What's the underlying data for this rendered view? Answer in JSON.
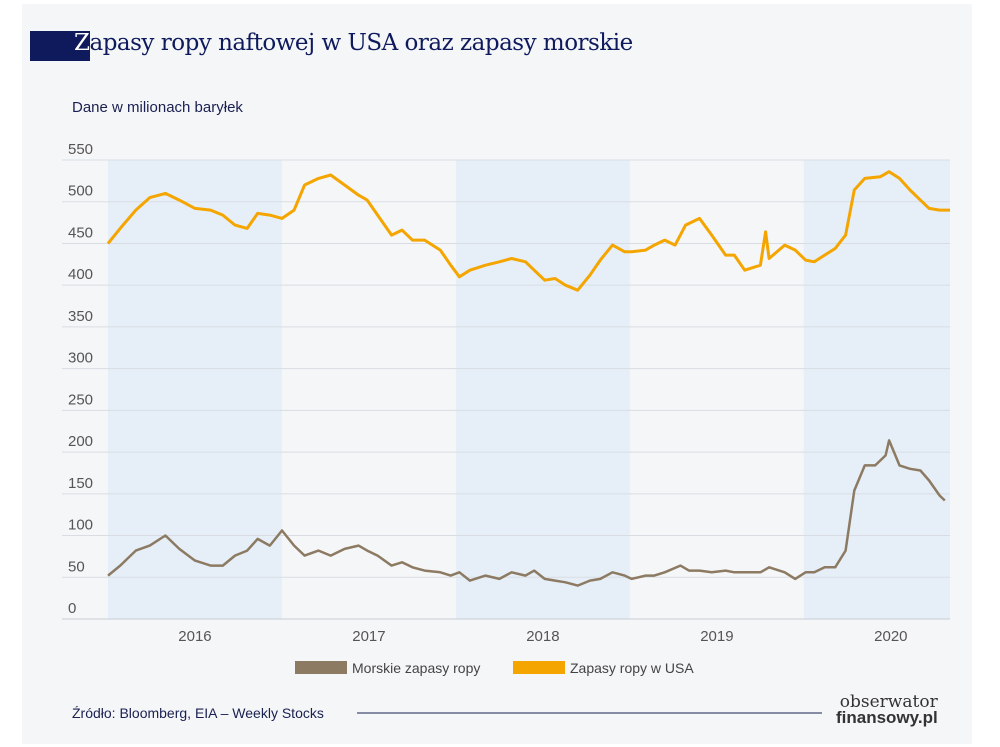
{
  "title": "Zapasy ropy naftowej w USA oraz zapasy morskie",
  "title_first": "Z",
  "title_rest": "apasy ropy naftowej w USA oraz zapasy morskie",
  "source": "Źródło: Bloomberg, EIA – Weekly Stocks",
  "logo": {
    "line1": "obserwator",
    "line2": "finansowy.pl"
  },
  "chart_data": {
    "type": "line",
    "title": "Zapasy ropy naftowej w USA oraz zapasy morskie",
    "subtitle": "Dane w milionach baryłek",
    "ylim": [
      0,
      550
    ],
    "yticks": [
      0,
      50,
      100,
      150,
      200,
      250,
      300,
      350,
      400,
      450,
      500,
      550
    ],
    "xlim": [
      2016.0,
      2020.84
    ],
    "xticks": [
      "2016",
      "2017",
      "2018",
      "2019",
      "2020"
    ],
    "shaded_years": [
      "2016",
      "2018",
      "2020"
    ],
    "grid": true,
    "legend_position": "bottom",
    "series": [
      {
        "name": "Morskie zapasy ropy",
        "color": "#8c7a62",
        "points": [
          [
            2016.0,
            52
          ],
          [
            2016.07,
            64
          ],
          [
            2016.16,
            82
          ],
          [
            2016.24,
            88
          ],
          [
            2016.33,
            100
          ],
          [
            2016.41,
            84
          ],
          [
            2016.5,
            70
          ],
          [
            2016.59,
            64
          ],
          [
            2016.66,
            64
          ],
          [
            2016.73,
            76
          ],
          [
            2016.8,
            82
          ],
          [
            2016.86,
            96
          ],
          [
            2016.93,
            88
          ],
          [
            2017.0,
            106
          ],
          [
            2017.07,
            88
          ],
          [
            2017.13,
            76
          ],
          [
            2017.21,
            82
          ],
          [
            2017.28,
            76
          ],
          [
            2017.36,
            84
          ],
          [
            2017.44,
            88
          ],
          [
            2017.49,
            82
          ],
          [
            2017.55,
            76
          ],
          [
            2017.63,
            64
          ],
          [
            2017.69,
            68
          ],
          [
            2017.75,
            62
          ],
          [
            2017.82,
            58
          ],
          [
            2017.91,
            56
          ],
          [
            2017.97,
            52
          ],
          [
            2018.02,
            56
          ],
          [
            2018.08,
            46
          ],
          [
            2018.17,
            52
          ],
          [
            2018.25,
            48
          ],
          [
            2018.32,
            56
          ],
          [
            2018.4,
            52
          ],
          [
            2018.45,
            58
          ],
          [
            2018.51,
            48
          ],
          [
            2018.57,
            46
          ],
          [
            2018.63,
            44
          ],
          [
            2018.7,
            40
          ],
          [
            2018.77,
            46
          ],
          [
            2018.83,
            48
          ],
          [
            2018.9,
            56
          ],
          [
            2018.97,
            52
          ],
          [
            2019.01,
            48
          ],
          [
            2019.09,
            52
          ],
          [
            2019.14,
            52
          ],
          [
            2019.2,
            56
          ],
          [
            2019.29,
            64
          ],
          [
            2019.34,
            58
          ],
          [
            2019.4,
            58
          ],
          [
            2019.47,
            56
          ],
          [
            2019.55,
            58
          ],
          [
            2019.6,
            56
          ],
          [
            2019.66,
            56
          ],
          [
            2019.75,
            56
          ],
          [
            2019.8,
            62
          ],
          [
            2019.89,
            56
          ],
          [
            2019.95,
            48
          ],
          [
            2020.01,
            56
          ],
          [
            2020.06,
            56
          ],
          [
            2020.12,
            62
          ],
          [
            2020.18,
            62
          ],
          [
            2020.24,
            82
          ],
          [
            2020.29,
            154
          ],
          [
            2020.35,
            184
          ],
          [
            2020.41,
            184
          ],
          [
            2020.47,
            196
          ],
          [
            2020.49,
            214
          ],
          [
            2020.55,
            184
          ],
          [
            2020.61,
            180
          ],
          [
            2020.67,
            178
          ],
          [
            2020.72,
            166
          ],
          [
            2020.78,
            148
          ],
          [
            2020.81,
            142
          ]
        ]
      },
      {
        "name": "Zapasy ropy w USA",
        "color": "#f5a500",
        "points": [
          [
            2016.0,
            450
          ],
          [
            2016.07,
            468
          ],
          [
            2016.16,
            490
          ],
          [
            2016.24,
            505
          ],
          [
            2016.33,
            510
          ],
          [
            2016.41,
            502
          ],
          [
            2016.5,
            492
          ],
          [
            2016.59,
            490
          ],
          [
            2016.66,
            484
          ],
          [
            2016.73,
            472
          ],
          [
            2016.8,
            468
          ],
          [
            2016.86,
            486
          ],
          [
            2016.93,
            484
          ],
          [
            2017.0,
            480
          ],
          [
            2017.07,
            490
          ],
          [
            2017.13,
            520
          ],
          [
            2017.21,
            528
          ],
          [
            2017.28,
            532
          ],
          [
            2017.36,
            520
          ],
          [
            2017.44,
            508
          ],
          [
            2017.49,
            502
          ],
          [
            2017.55,
            484
          ],
          [
            2017.63,
            460
          ],
          [
            2017.69,
            466
          ],
          [
            2017.75,
            454
          ],
          [
            2017.82,
            454
          ],
          [
            2017.91,
            442
          ],
          [
            2017.97,
            424
          ],
          [
            2018.02,
            410
          ],
          [
            2018.08,
            418
          ],
          [
            2018.17,
            424
          ],
          [
            2018.25,
            428
          ],
          [
            2018.32,
            432
          ],
          [
            2018.4,
            428
          ],
          [
            2018.45,
            418
          ],
          [
            2018.51,
            406
          ],
          [
            2018.57,
            408
          ],
          [
            2018.63,
            400
          ],
          [
            2018.7,
            394
          ],
          [
            2018.77,
            412
          ],
          [
            2018.83,
            430
          ],
          [
            2018.9,
            448
          ],
          [
            2018.97,
            440
          ],
          [
            2019.01,
            440
          ],
          [
            2019.09,
            442
          ],
          [
            2019.14,
            448
          ],
          [
            2019.2,
            454
          ],
          [
            2019.26,
            448
          ],
          [
            2019.32,
            472
          ],
          [
            2019.4,
            480
          ],
          [
            2019.47,
            460
          ],
          [
            2019.55,
            436
          ],
          [
            2019.6,
            436
          ],
          [
            2019.66,
            418
          ],
          [
            2019.75,
            424
          ],
          [
            2019.78,
            464
          ],
          [
            2019.8,
            432
          ],
          [
            2019.89,
            448
          ],
          [
            2019.95,
            442
          ],
          [
            2020.01,
            430
          ],
          [
            2020.06,
            428
          ],
          [
            2020.12,
            436
          ],
          [
            2020.18,
            444
          ],
          [
            2020.24,
            460
          ],
          [
            2020.29,
            514
          ],
          [
            2020.35,
            528
          ],
          [
            2020.44,
            530
          ],
          [
            2020.49,
            536
          ],
          [
            2020.55,
            528
          ],
          [
            2020.61,
            514
          ],
          [
            2020.67,
            502
          ],
          [
            2020.72,
            492
          ],
          [
            2020.78,
            490
          ],
          [
            2020.84,
            490
          ]
        ]
      }
    ]
  }
}
